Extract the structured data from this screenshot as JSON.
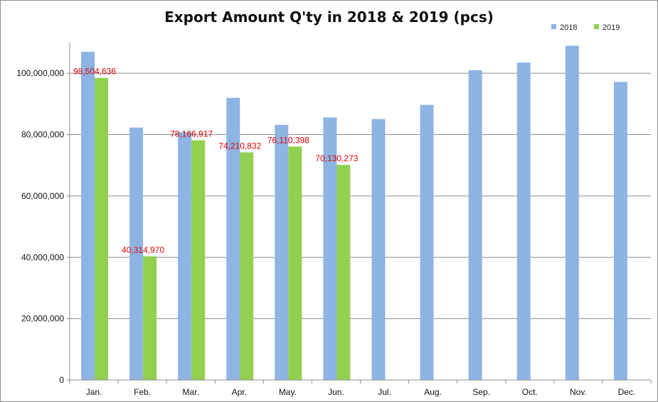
{
  "chart_data": {
    "type": "bar",
    "title": "Export Amount Q'ty in 2018 & 2019 (pcs)",
    "xlabel": "",
    "ylabel": "",
    "categories": [
      "Jan.",
      "Feb.",
      "Mar.",
      "Apr.",
      "May.",
      "Jun.",
      "Jul.",
      "Aug.",
      "Sep.",
      "Oct.",
      "Nov.",
      "Dec."
    ],
    "ylim": [
      0,
      110000000
    ],
    "yticks": [
      0,
      20000000,
      40000000,
      60000000,
      80000000,
      100000000
    ],
    "ytick_labels": [
      "0",
      "20,000,000",
      "40,000,000",
      "60,000,000",
      "80,000,000",
      "100,000,000"
    ],
    "grid": true,
    "legend_position": "top-right",
    "series": [
      {
        "name": "2018",
        "color": "#8eb4e3",
        "values": [
          107000000,
          82300000,
          80800000,
          92000000,
          83200000,
          85600000,
          85100000,
          89700000,
          101000000,
          103500000,
          109000000,
          97200000
        ]
      },
      {
        "name": "2019",
        "color": "#92d050",
        "values": [
          98504636,
          40314970,
          78166917,
          74210832,
          76110398,
          70130273,
          null,
          null,
          null,
          null,
          null,
          null
        ],
        "data_labels": [
          "98,504,636",
          "40,314,970",
          "78,166,917",
          "74,210,832",
          "76,110,398",
          "70,130,273"
        ]
      }
    ]
  }
}
